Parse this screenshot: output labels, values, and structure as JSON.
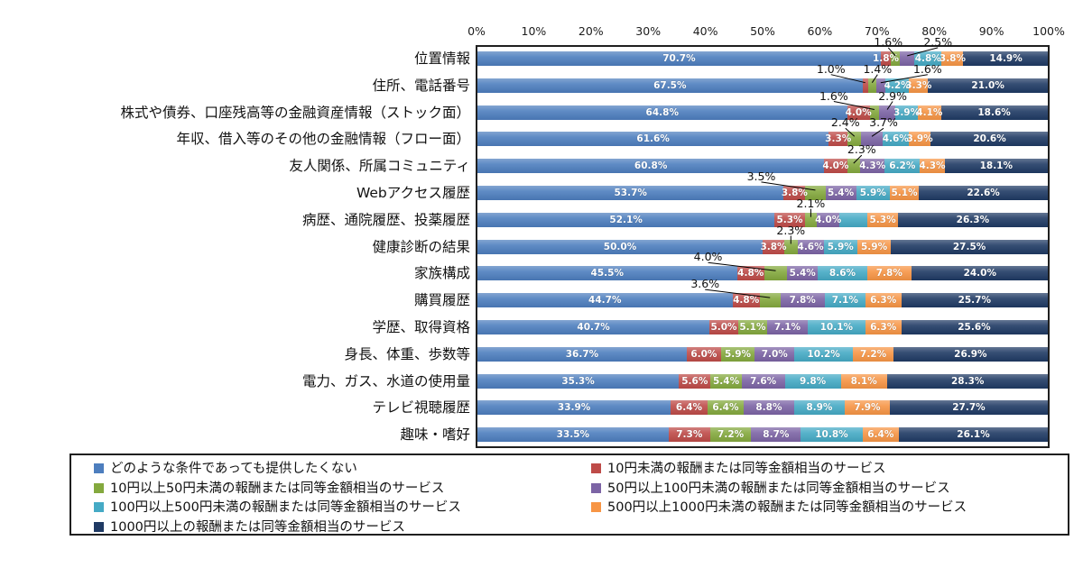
{
  "chart_data": {
    "type": "bar",
    "variant": "horizontal-stacked-100pct",
    "grid": false,
    "legend_position": "bottom-two-columns",
    "x_axis": {
      "min": 0,
      "max": 100,
      "ticks": [
        "0%",
        "10%",
        "20%",
        "30%",
        "40%",
        "50%",
        "60%",
        "70%",
        "80%",
        "90%",
        "100%"
      ]
    },
    "series": [
      {
        "name": "どのような条件であっても提供したくない",
        "color": "#4D7EBE"
      },
      {
        "name": "10円未満の報酬または同等金額相当のサービス",
        "color": "#BE4B48"
      },
      {
        "name": "10円以上50円未満の報酬または同等金額相当のサービス",
        "color": "#84A93E"
      },
      {
        "name": "50円以上100円未満の報酬または同等金額相当のサービス",
        "color": "#7C64A5"
      },
      {
        "name": "100円以上500円未満の報酬または同等金額相当のサービス",
        "color": "#45AAC5"
      },
      {
        "name": "500円以上1000円未満の報酬または同等金額相当のサービス",
        "color": "#F79545"
      },
      {
        "name": "1000円以上の報酬または同等金額相当のサービス",
        "color": "#1F3A64"
      }
    ],
    "rows": [
      {
        "category": "位置情報",
        "values": [
          70.7,
          1.8,
          1.6,
          2.5,
          4.8,
          3.8,
          14.9
        ],
        "callouts": [
          {
            "seg": 2,
            "dx": -8
          },
          {
            "seg": 3,
            "dx": 34
          }
        ]
      },
      {
        "category": "住所、電話番号",
        "values": [
          67.5,
          1.0,
          1.4,
          1.6,
          4.2,
          3.3,
          21.0
        ],
        "callouts": [
          {
            "seg": 1,
            "dx": -38
          },
          {
            "seg": 2,
            "dx": 6
          },
          {
            "seg": 3,
            "dx": 52
          }
        ]
      },
      {
        "category": "株式や債券、口座残高等の金融資産情報（ストック面）",
        "values": [
          64.8,
          4.0,
          1.6,
          2.9,
          3.9,
          4.1,
          18.6
        ],
        "callouts": [
          {
            "seg": 2,
            "dx": -45
          },
          {
            "seg": 3,
            "dx": 6
          }
        ]
      },
      {
        "category": "年収、借入等のその他の金融情報（フロー面）",
        "values": [
          61.6,
          3.3,
          2.4,
          3.7,
          4.6,
          3.9,
          20.6
        ],
        "callouts": [
          {
            "seg": 2,
            "dx": -10
          },
          {
            "seg": 3,
            "dx": 13
          }
        ]
      },
      {
        "category": "友人関係、所属コミュニティ",
        "values": [
          60.8,
          4.0,
          2.3,
          4.3,
          6.2,
          4.3,
          18.1
        ],
        "callouts": [
          {
            "seg": 2,
            "dx": 9
          }
        ]
      },
      {
        "category": "Webアクセス履歴",
        "values": [
          53.7,
          3.8,
          3.5,
          5.4,
          5.9,
          5.1,
          22.6
        ],
        "callouts": [
          {
            "seg": 2,
            "dx": -60
          }
        ]
      },
      {
        "category": "病歴、通院履歴、投薬履歴",
        "values": [
          52.1,
          5.3,
          2.1,
          4.0,
          4.9,
          5.3,
          26.3
        ],
        "callouts": [
          {
            "seg": 2,
            "dx": 0
          }
        ],
        "hide_labels": [
          4
        ]
      },
      {
        "category": "健康診断の結果",
        "values": [
          50.0,
          3.8,
          2.3,
          4.6,
          5.9,
          5.9,
          27.5
        ],
        "callouts": [
          {
            "seg": 2,
            "dx": 0
          }
        ]
      },
      {
        "category": "家族構成",
        "values": [
          45.5,
          4.8,
          4.0,
          5.4,
          8.6,
          7.8,
          24.0
        ],
        "callouts": [
          {
            "seg": 2,
            "dx": -75
          }
        ]
      },
      {
        "category": "購買履歴",
        "values": [
          44.7,
          4.8,
          3.6,
          7.8,
          7.1,
          6.3,
          25.7
        ],
        "callouts": [
          {
            "seg": 2,
            "dx": -72
          }
        ]
      },
      {
        "category": "学歴、取得資格",
        "values": [
          40.7,
          5.0,
          5.1,
          7.1,
          10.1,
          6.3,
          25.6
        ],
        "callouts": []
      },
      {
        "category": "身長、体重、歩数等",
        "values": [
          36.7,
          6.0,
          5.9,
          7.0,
          10.2,
          7.2,
          26.9
        ],
        "callouts": []
      },
      {
        "category": "電力、ガス、水道の使用量",
        "values": [
          35.3,
          5.6,
          5.4,
          7.6,
          9.8,
          8.1,
          28.3
        ],
        "callouts": []
      },
      {
        "category": "テレビ視聴履歴",
        "values": [
          33.9,
          6.4,
          6.4,
          8.8,
          8.9,
          7.9,
          27.7
        ],
        "callouts": []
      },
      {
        "category": "趣味・嗜好",
        "values": [
          33.5,
          7.3,
          7.2,
          8.7,
          10.8,
          6.4,
          26.1
        ],
        "callouts": []
      }
    ],
    "value_label_format": "0.0%",
    "value_label_color": "#ffffff"
  }
}
